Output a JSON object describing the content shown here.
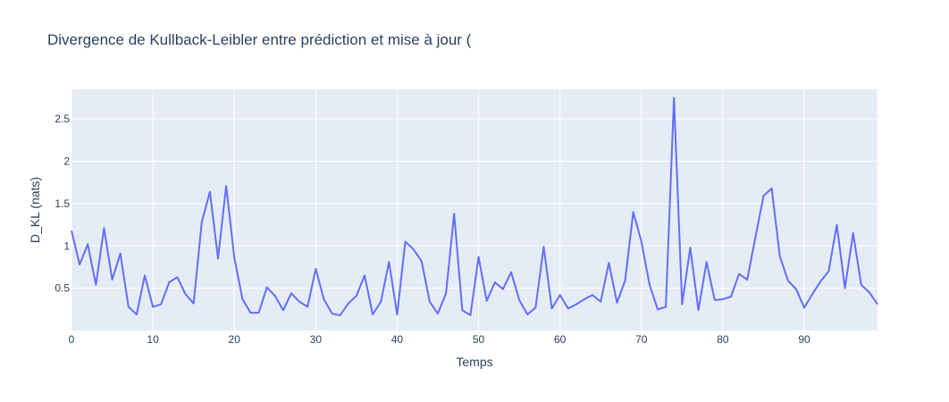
{
  "chart_data": {
    "type": "line",
    "title": "Divergence de Kullback-Leibler entre prédiction et mise à jour (",
    "xlabel": "Temps",
    "ylabel": "D_KL (nats)",
    "xlim": [
      0,
      99
    ],
    "ylim": [
      0,
      2.85
    ],
    "x_ticks": [
      0,
      10,
      20,
      30,
      40,
      50,
      60,
      70,
      80,
      90
    ],
    "x_tick_labels": [
      "0",
      "10",
      "20",
      "30",
      "40",
      "50",
      "60",
      "70",
      "80",
      "90"
    ],
    "y_ticks": [
      0.5,
      1,
      1.5,
      2,
      2.5
    ],
    "y_tick_labels": [
      "0.5",
      "1",
      "1.5",
      "2",
      "2.5"
    ],
    "grid": true,
    "line_color": "#636efa",
    "plot_background": "#e5ecf6",
    "series": [
      {
        "x": [
          0,
          1,
          2,
          3,
          4,
          5,
          6,
          7,
          8,
          9,
          10,
          11,
          12,
          13,
          14,
          15,
          16,
          17,
          18,
          19,
          20,
          21,
          22,
          23,
          24,
          25,
          26,
          27,
          28,
          29,
          30,
          31,
          32,
          33,
          34,
          35,
          36,
          37,
          38,
          39,
          40,
          41,
          42,
          43,
          44,
          45,
          46,
          47,
          48,
          49,
          50,
          51,
          52,
          53,
          54,
          55,
          56,
          57,
          58,
          59,
          60,
          61,
          62,
          63,
          64,
          65,
          66,
          67,
          68,
          69,
          70,
          71,
          72,
          73,
          74,
          75,
          76,
          77,
          78,
          79,
          80,
          81,
          82,
          83,
          84,
          85,
          86,
          87,
          88,
          89,
          90,
          91,
          92,
          93,
          94,
          95,
          96,
          97,
          98,
          99
        ],
        "values": [
          1.18,
          0.78,
          1.02,
          0.54,
          1.21,
          0.6,
          0.91,
          0.28,
          0.19,
          0.65,
          0.28,
          0.31,
          0.57,
          0.63,
          0.43,
          0.32,
          1.28,
          1.64,
          0.85,
          1.71,
          0.86,
          0.37,
          0.21,
          0.21,
          0.51,
          0.41,
          0.24,
          0.44,
          0.34,
          0.28,
          0.73,
          0.37,
          0.2,
          0.18,
          0.32,
          0.41,
          0.65,
          0.19,
          0.34,
          0.81,
          0.19,
          1.05,
          0.96,
          0.82,
          0.34,
          0.2,
          0.44,
          1.38,
          0.24,
          0.18,
          0.87,
          0.35,
          0.57,
          0.49,
          0.69,
          0.36,
          0.19,
          0.27,
          0.99,
          0.26,
          0.42,
          0.26,
          0.31,
          0.37,
          0.42,
          0.34,
          0.8,
          0.33,
          0.59,
          1.4,
          1.05,
          0.54,
          0.25,
          0.28,
          2.75,
          0.31,
          0.98,
          0.24,
          0.81,
          0.36,
          0.37,
          0.4,
          0.67,
          0.6,
          1.1,
          1.59,
          1.68,
          0.88,
          0.59,
          0.49,
          0.27,
          0.43,
          0.58,
          0.7,
          1.25,
          0.5,
          1.15,
          0.54,
          0.45,
          0.31
        ]
      }
    ]
  }
}
